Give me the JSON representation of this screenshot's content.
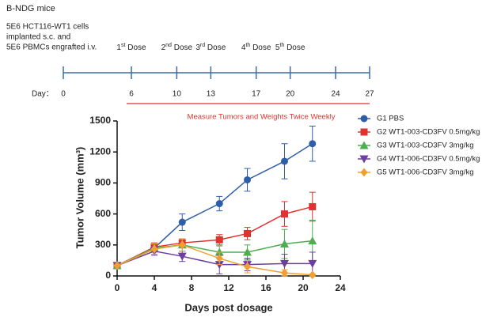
{
  "header": {
    "title": "B-NDG mice",
    "setup": [
      "5E6 HCT116-WT1 cells",
      "implanted s.c. and",
      "5E6 PBMCs engrafted i.v."
    ]
  },
  "timeline": {
    "label": "Day：",
    "days": [
      0,
      6,
      10,
      13,
      17,
      20,
      24,
      27
    ],
    "doses": [
      {
        "n": "1",
        "sup": "st",
        "word": " Dose"
      },
      {
        "n": "2",
        "sup": "nd",
        "word": " Dose"
      },
      {
        "n": "3",
        "sup": "rd",
        "word": " Dose"
      },
      {
        "n": "4",
        "sup": "th",
        "word": " Dose"
      },
      {
        "n": "5",
        "sup": "th",
        "word": " Dose"
      }
    ],
    "note": "Measure Tumors and Weights Twice Weekly"
  },
  "chart_data": {
    "type": "line",
    "xlabel": "Days post dosage",
    "ylabel": "Tumor Volume (mm³)",
    "x": [
      0,
      4,
      7,
      11,
      14,
      18,
      21
    ],
    "xlim": [
      0,
      24
    ],
    "xticks": [
      0,
      4,
      8,
      12,
      16,
      20,
      24
    ],
    "ylim": [
      0,
      1500
    ],
    "yticks": [
      0,
      300,
      600,
      900,
      1200,
      1500
    ],
    "legend": "upper right",
    "series": [
      {
        "name": "G1 PBS",
        "color": "#2f5ea8",
        "marker": "circle",
        "values": [
          100,
          270,
          520,
          700,
          930,
          1110,
          1280
        ],
        "errors": [
          0,
          30,
          80,
          70,
          110,
          170,
          170
        ]
      },
      {
        "name": "G2 WT1-003-CD3FV 0.5mg/kg",
        "color": "#e0332f",
        "marker": "square",
        "values": [
          100,
          280,
          320,
          350,
          410,
          600,
          670
        ],
        "errors": [
          0,
          40,
          40,
          50,
          60,
          120,
          140
        ]
      },
      {
        "name": "G3 WT1-003-CD3FV 3mg/kg",
        "color": "#4cae4f",
        "marker": "triangle",
        "values": [
          100,
          270,
          300,
          230,
          230,
          310,
          340
        ],
        "errors": [
          0,
          40,
          60,
          60,
          70,
          140,
          200
        ]
      },
      {
        "name": "G4 WT1-006-CD3FV 0.5mg/kg",
        "color": "#6a3fa0",
        "marker": "triangle-down",
        "values": [
          100,
          240,
          190,
          110,
          110,
          120,
          120
        ],
        "errors": [
          0,
          40,
          50,
          90,
          60,
          90,
          110
        ]
      },
      {
        "name": "G5 WT1-006-CD3FV 3mg/kg",
        "color": "#f0a030",
        "marker": "diamond",
        "values": [
          100,
          260,
          300,
          170,
          90,
          30,
          10
        ],
        "errors": [
          0,
          50,
          60,
          60,
          60,
          30,
          10
        ]
      }
    ]
  }
}
